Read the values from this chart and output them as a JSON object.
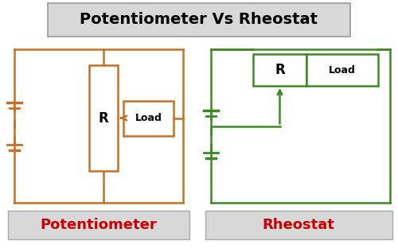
{
  "title": "Potentiometer Vs Rheostat",
  "title_fontsize": 14,
  "title_bg": "#d8d8d8",
  "pot_color": "#c87020",
  "rheo_color": "#3a8a20",
  "pot_label": "Potentiometer",
  "rheo_label": "Rheostat",
  "label_color": "#cc0000",
  "label_fontsize": 13,
  "label_bg": "#d8d8d8",
  "bg_color": "#ffffff",
  "lw": 1.8
}
